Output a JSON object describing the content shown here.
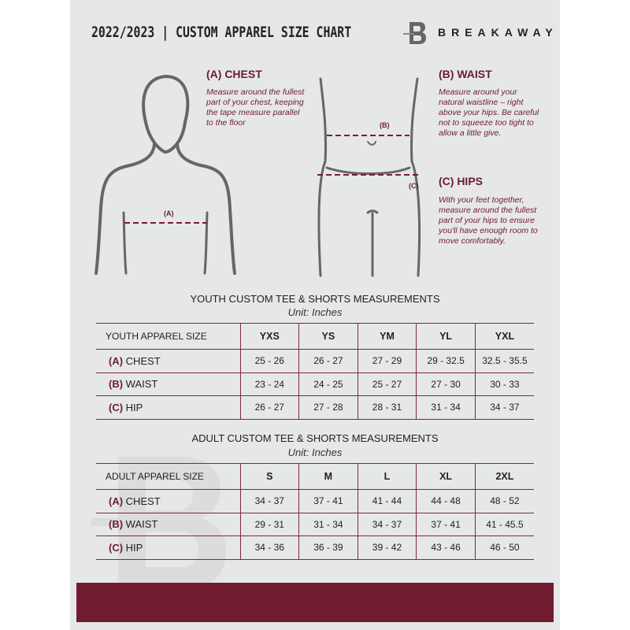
{
  "header": {
    "title": "2022/2023 | CUSTOM APPAREL SIZE CHART",
    "brand": "BREAKAWAY",
    "logo_letter": "B"
  },
  "guides": {
    "chest": {
      "heading": "(A) CHEST",
      "marker": "(A)",
      "text": "Measure around the fullest part of your chest, keeping the tape measure parallel to the floor"
    },
    "waist": {
      "heading": "(B) WAIST",
      "marker": "(B)",
      "text": "Measure around your natural waistline – right above your hips. Be careful not to squeeze too tight to allow a little give."
    },
    "hips": {
      "heading": "(C) HIPS",
      "marker": "(C)",
      "text": "With your feet together, measure around the fullest part of your hips to ensure you'll have enough room to move comfortably."
    }
  },
  "youth": {
    "title": "YOUTH CUSTOM TEE & SHORTS MEASUREMENTS",
    "unit": "Unit: Inches",
    "size_label": "YOUTH APPAREL SIZE",
    "sizes": [
      "YXS",
      "YS",
      "YM",
      "YL",
      "YXL"
    ],
    "rows": [
      {
        "code": "(A)",
        "label": "CHEST",
        "values": [
          "25 - 26",
          "26 - 27",
          "27 - 29",
          "29 - 32.5",
          "32.5 - 35.5"
        ]
      },
      {
        "code": "(B)",
        "label": "WAIST",
        "values": [
          "23 - 24",
          "24 - 25",
          "25 - 27",
          "27 - 30",
          "30 - 33"
        ]
      },
      {
        "code": "(C)",
        "label": "HIP",
        "values": [
          "26 - 27",
          "27 - 28",
          "28 - 31",
          "31 - 34",
          "34 - 37"
        ]
      }
    ]
  },
  "adult": {
    "title": "ADULT CUSTOM TEE & SHORTS MEASUREMENTS",
    "unit": "Unit: Inches",
    "size_label": "ADULT APPAREL SIZE",
    "sizes": [
      "S",
      "M",
      "L",
      "XL",
      "2XL"
    ],
    "rows": [
      {
        "code": "(A)",
        "label": "CHEST",
        "values": [
          "34 - 37",
          "37 - 41",
          "41 - 44",
          "44 - 48",
          "48 - 52"
        ]
      },
      {
        "code": "(B)",
        "label": "WAIST",
        "values": [
          "29 - 31",
          "31 - 34",
          "34 - 37",
          "37 - 41",
          "41 - 45.5"
        ]
      },
      {
        "code": "(C)",
        "label": "HIP",
        "values": [
          "34 - 36",
          "36 - 39",
          "39 - 42",
          "43 - 46",
          "46 - 50"
        ]
      }
    ]
  },
  "colors": {
    "accent": "#6e1b2f",
    "background": "#e6e7e9"
  }
}
